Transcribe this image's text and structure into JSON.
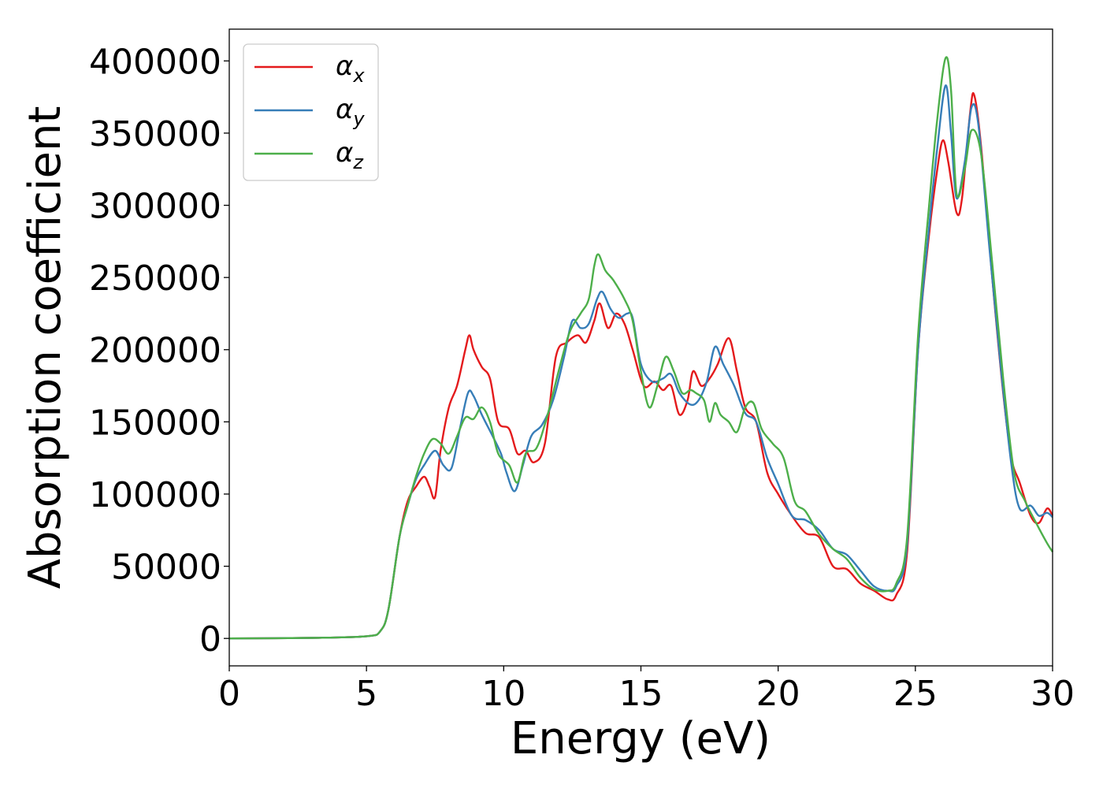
{
  "chart_data": {
    "type": "line",
    "title": "",
    "xlabel": "Energy (eV)",
    "ylabel": "Absorption coefficient",
    "xlim": [
      0,
      30
    ],
    "ylim": [
      -19000,
      422000
    ],
    "xticks": [
      0,
      5,
      10,
      15,
      20,
      25,
      30
    ],
    "xtick_labels": [
      "0",
      "5",
      "10",
      "15",
      "20",
      "25",
      "30"
    ],
    "yticks": [
      0,
      50000,
      100000,
      150000,
      200000,
      250000,
      300000,
      350000,
      400000
    ],
    "ytick_labels": [
      "0",
      "50000",
      "100000",
      "150000",
      "200000",
      "250000",
      "300000",
      "350000",
      "400000"
    ],
    "grid": false,
    "legend_position": "top-left",
    "series": [
      {
        "name": "α",
        "subscript": "x",
        "color": "#e41a1c",
        "points": [
          [
            0,
            0
          ],
          [
            3,
            400
          ],
          [
            5,
            1500
          ],
          [
            5.5,
            5000
          ],
          [
            5.8,
            20000
          ],
          [
            6.2,
            70000
          ],
          [
            6.5,
            95000
          ],
          [
            6.8,
            105000
          ],
          [
            7.1,
            112000
          ],
          [
            7.3,
            105000
          ],
          [
            7.5,
            98000
          ],
          [
            7.7,
            130000
          ],
          [
            8.0,
            160000
          ],
          [
            8.3,
            175000
          ],
          [
            8.6,
            200000
          ],
          [
            8.75,
            210000
          ],
          [
            8.9,
            200000
          ],
          [
            9.2,
            188000
          ],
          [
            9.5,
            180000
          ],
          [
            9.8,
            150000
          ],
          [
            10.2,
            145000
          ],
          [
            10.5,
            128000
          ],
          [
            10.8,
            130000
          ],
          [
            11.1,
            122000
          ],
          [
            11.5,
            135000
          ],
          [
            11.9,
            195000
          ],
          [
            12.3,
            205000
          ],
          [
            12.7,
            210000
          ],
          [
            13.0,
            205000
          ],
          [
            13.3,
            220000
          ],
          [
            13.5,
            232000
          ],
          [
            13.8,
            215000
          ],
          [
            14.1,
            225000
          ],
          [
            14.4,
            218000
          ],
          [
            14.7,
            200000
          ],
          [
            15.1,
            175000
          ],
          [
            15.5,
            178000
          ],
          [
            15.8,
            172000
          ],
          [
            16.1,
            175000
          ],
          [
            16.4,
            155000
          ],
          [
            16.7,
            165000
          ],
          [
            16.9,
            185000
          ],
          [
            17.2,
            175000
          ],
          [
            17.5,
            180000
          ],
          [
            17.8,
            190000
          ],
          [
            18.2,
            208000
          ],
          [
            18.5,
            185000
          ],
          [
            18.8,
            160000
          ],
          [
            19.2,
            150000
          ],
          [
            19.6,
            115000
          ],
          [
            20.0,
            100000
          ],
          [
            20.5,
            85000
          ],
          [
            21.0,
            73000
          ],
          [
            21.5,
            70000
          ],
          [
            22.0,
            50000
          ],
          [
            22.5,
            48000
          ],
          [
            23.0,
            38000
          ],
          [
            23.5,
            33000
          ],
          [
            24.0,
            27000
          ],
          [
            24.3,
            30000
          ],
          [
            24.7,
            60000
          ],
          [
            25.1,
            200000
          ],
          [
            25.5,
            280000
          ],
          [
            25.8,
            325000
          ],
          [
            26.0,
            345000
          ],
          [
            26.2,
            330000
          ],
          [
            26.5,
            295000
          ],
          [
            26.7,
            305000
          ],
          [
            27.0,
            365000
          ],
          [
            27.15,
            376000
          ],
          [
            27.4,
            340000
          ],
          [
            27.8,
            250000
          ],
          [
            28.2,
            170000
          ],
          [
            28.5,
            125000
          ],
          [
            28.8,
            108000
          ],
          [
            29.2,
            85000
          ],
          [
            29.5,
            80000
          ],
          [
            29.8,
            90000
          ],
          [
            30.0,
            85000
          ]
        ]
      },
      {
        "name": "α",
        "subscript": "y",
        "color": "#377eb8",
        "points": [
          [
            0,
            0
          ],
          [
            3,
            400
          ],
          [
            5,
            1500
          ],
          [
            5.5,
            5000
          ],
          [
            5.8,
            20000
          ],
          [
            6.2,
            70000
          ],
          [
            6.5,
            92000
          ],
          [
            6.8,
            110000
          ],
          [
            7.1,
            120000
          ],
          [
            7.5,
            130000
          ],
          [
            7.8,
            120000
          ],
          [
            8.1,
            118000
          ],
          [
            8.4,
            145000
          ],
          [
            8.7,
            170000
          ],
          [
            8.9,
            168000
          ],
          [
            9.2,
            155000
          ],
          [
            9.6,
            140000
          ],
          [
            9.9,
            128000
          ],
          [
            10.1,
            115000
          ],
          [
            10.4,
            102000
          ],
          [
            10.7,
            120000
          ],
          [
            11.0,
            140000
          ],
          [
            11.4,
            148000
          ],
          [
            11.8,
            165000
          ],
          [
            12.2,
            195000
          ],
          [
            12.5,
            220000
          ],
          [
            12.8,
            215000
          ],
          [
            13.1,
            218000
          ],
          [
            13.4,
            235000
          ],
          [
            13.6,
            240000
          ],
          [
            13.9,
            228000
          ],
          [
            14.2,
            222000
          ],
          [
            14.5,
            225000
          ],
          [
            14.7,
            222000
          ],
          [
            15.0,
            190000
          ],
          [
            15.4,
            178000
          ],
          [
            15.8,
            180000
          ],
          [
            16.1,
            183000
          ],
          [
            16.4,
            170000
          ],
          [
            16.8,
            162000
          ],
          [
            17.1,
            165000
          ],
          [
            17.4,
            178000
          ],
          [
            17.7,
            202000
          ],
          [
            18.0,
            190000
          ],
          [
            18.4,
            175000
          ],
          [
            18.8,
            156000
          ],
          [
            19.2,
            150000
          ],
          [
            19.6,
            125000
          ],
          [
            20.0,
            107000
          ],
          [
            20.5,
            85000
          ],
          [
            21.0,
            82000
          ],
          [
            21.5,
            75000
          ],
          [
            22.0,
            62000
          ],
          [
            22.5,
            58000
          ],
          [
            23.0,
            47000
          ],
          [
            23.5,
            36000
          ],
          [
            24.0,
            33000
          ],
          [
            24.3,
            36000
          ],
          [
            24.7,
            65000
          ],
          [
            25.1,
            200000
          ],
          [
            25.5,
            285000
          ],
          [
            25.8,
            340000
          ],
          [
            26.1,
            383000
          ],
          [
            26.3,
            350000
          ],
          [
            26.5,
            305000
          ],
          [
            26.8,
            330000
          ],
          [
            27.05,
            368000
          ],
          [
            27.3,
            355000
          ],
          [
            27.7,
            270000
          ],
          [
            28.1,
            190000
          ],
          [
            28.5,
            120000
          ],
          [
            28.8,
            90000
          ],
          [
            29.2,
            92000
          ],
          [
            29.5,
            85000
          ],
          [
            29.8,
            87000
          ],
          [
            30.0,
            84000
          ]
        ]
      },
      {
        "name": "α",
        "subscript": "z",
        "color": "#4daf4a",
        "points": [
          [
            0,
            0
          ],
          [
            3,
            400
          ],
          [
            5,
            1500
          ],
          [
            5.5,
            5000
          ],
          [
            5.8,
            20000
          ],
          [
            6.2,
            70000
          ],
          [
            6.5,
            92000
          ],
          [
            6.8,
            112000
          ],
          [
            7.1,
            128000
          ],
          [
            7.4,
            138000
          ],
          [
            7.7,
            135000
          ],
          [
            8.0,
            128000
          ],
          [
            8.3,
            140000
          ],
          [
            8.6,
            153000
          ],
          [
            8.9,
            152000
          ],
          [
            9.2,
            160000
          ],
          [
            9.5,
            150000
          ],
          [
            9.8,
            128000
          ],
          [
            10.2,
            120000
          ],
          [
            10.5,
            108000
          ],
          [
            10.8,
            128000
          ],
          [
            11.2,
            132000
          ],
          [
            11.6,
            155000
          ],
          [
            12.0,
            185000
          ],
          [
            12.4,
            212000
          ],
          [
            12.8,
            225000
          ],
          [
            13.1,
            235000
          ],
          [
            13.3,
            258000
          ],
          [
            13.45,
            266000
          ],
          [
            13.7,
            255000
          ],
          [
            14.0,
            248000
          ],
          [
            14.4,
            235000
          ],
          [
            14.7,
            220000
          ],
          [
            15.0,
            185000
          ],
          [
            15.3,
            160000
          ],
          [
            15.6,
            175000
          ],
          [
            15.9,
            195000
          ],
          [
            16.2,
            185000
          ],
          [
            16.5,
            170000
          ],
          [
            16.8,
            172000
          ],
          [
            17.0,
            170000
          ],
          [
            17.3,
            165000
          ],
          [
            17.5,
            150000
          ],
          [
            17.7,
            163000
          ],
          [
            17.9,
            155000
          ],
          [
            18.2,
            150000
          ],
          [
            18.5,
            143000
          ],
          [
            18.8,
            160000
          ],
          [
            19.1,
            163000
          ],
          [
            19.4,
            145000
          ],
          [
            19.8,
            135000
          ],
          [
            20.2,
            125000
          ],
          [
            20.6,
            95000
          ],
          [
            21.0,
            88000
          ],
          [
            21.5,
            72000
          ],
          [
            22.0,
            62000
          ],
          [
            22.5,
            55000
          ],
          [
            23.0,
            42000
          ],
          [
            23.5,
            34000
          ],
          [
            24.0,
            33000
          ],
          [
            24.3,
            38000
          ],
          [
            24.7,
            70000
          ],
          [
            25.1,
            210000
          ],
          [
            25.5,
            300000
          ],
          [
            25.8,
            360000
          ],
          [
            26.1,
            402000
          ],
          [
            26.3,
            380000
          ],
          [
            26.5,
            308000
          ],
          [
            26.8,
            325000
          ],
          [
            27.05,
            352000
          ],
          [
            27.4,
            335000
          ],
          [
            27.8,
            260000
          ],
          [
            28.2,
            180000
          ],
          [
            28.6,
            115000
          ],
          [
            29.0,
            95000
          ],
          [
            29.4,
            80000
          ],
          [
            29.8,
            66000
          ],
          [
            30.0,
            60000
          ]
        ]
      }
    ]
  }
}
